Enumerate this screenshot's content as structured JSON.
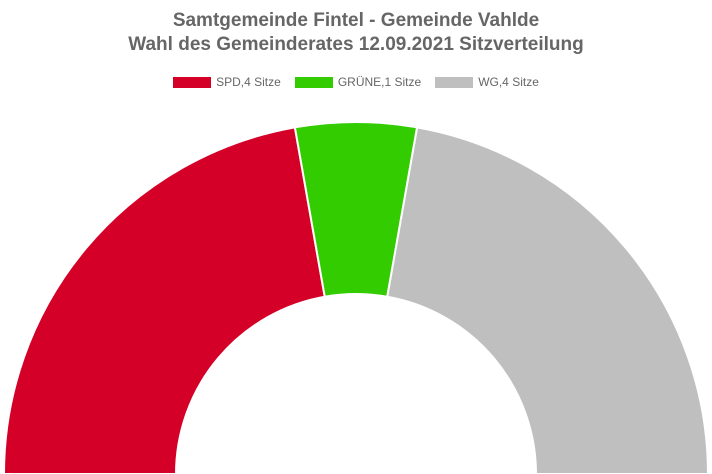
{
  "chart_data": {
    "type": "pie",
    "variant": "semicircle-donut",
    "title": "Samtgemeinde Fintel - Gemeinde Vahlde",
    "subtitle": "Wahl des Gemeinderates 12.09.2021 Sitzverteilung",
    "legend_position": "top-center",
    "series": [
      {
        "name": "SPD,4 Sitze",
        "value": 4,
        "color": "#d50027"
      },
      {
        "name": "GRÜNE,1 Sitze",
        "value": 1,
        "color": "#33cc00"
      },
      {
        "name": "WG,4 Sitze",
        "value": 4,
        "color": "#bfbfbf"
      }
    ]
  }
}
